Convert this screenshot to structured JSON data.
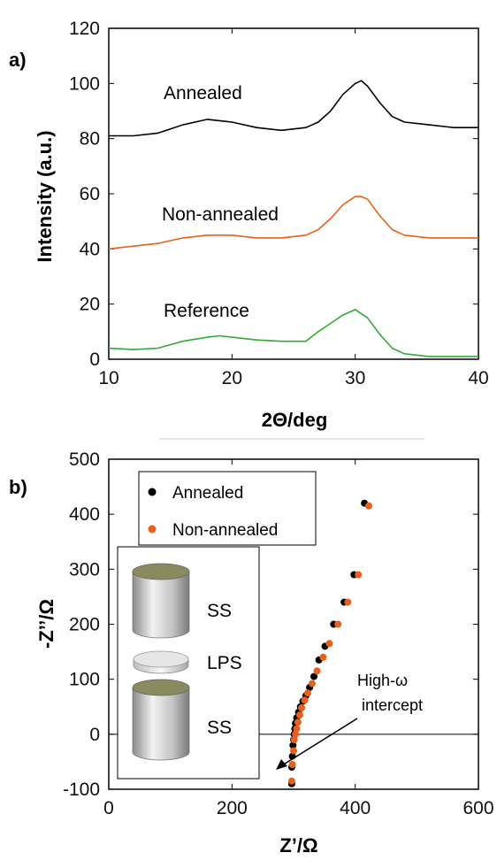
{
  "chart_data": [
    {
      "type": "line",
      "panel_label": "a)",
      "xlabel": "2Θ/deg",
      "ylabel": "Intensity (a.u.)",
      "xlim": [
        10,
        40
      ],
      "ylim": [
        0,
        120
      ],
      "xticks": [
        "10",
        "20",
        "30",
        "40"
      ],
      "yticks": [
        "0",
        "20",
        "40",
        "60",
        "80",
        "100",
        "120"
      ],
      "grid": false,
      "series": [
        {
          "name": "Annealed",
          "color": "#000000",
          "x": [
            10,
            12,
            14,
            16,
            18,
            20,
            22,
            24,
            26,
            27,
            28,
            29,
            30,
            30.5,
            31,
            32,
            33,
            34,
            36,
            38,
            40
          ],
          "y": [
            81,
            81,
            82,
            85,
            87,
            86,
            84,
            83,
            84,
            86,
            90,
            96,
            100,
            101,
            99,
            93,
            88,
            86,
            85,
            84,
            84
          ]
        },
        {
          "name": "Non-annealed",
          "color": "#e8601c",
          "x": [
            10,
            12,
            14,
            16,
            18,
            20,
            22,
            24,
            26,
            27,
            28,
            29,
            30,
            30.5,
            31,
            32,
            33,
            34,
            36,
            38,
            40
          ],
          "y": [
            40,
            41,
            42,
            44,
            45,
            45,
            44,
            44,
            45,
            47,
            51,
            56,
            59,
            59,
            58,
            52,
            47,
            45,
            44,
            44,
            44
          ]
        },
        {
          "name": "Reference",
          "color": "#33aa33",
          "x": [
            10,
            12,
            14,
            16,
            18,
            19,
            20,
            22,
            24,
            26,
            27,
            28,
            29,
            30,
            31,
            32,
            33,
            34,
            36,
            38,
            40
          ],
          "y": [
            4,
            3.5,
            4,
            6.5,
            8,
            8.5,
            8,
            7,
            6.5,
            6.5,
            10,
            13,
            16,
            18,
            15,
            9,
            4,
            2,
            1,
            1,
            1
          ]
        }
      ]
    },
    {
      "type": "scatter",
      "panel_label": "b)",
      "xlabel": "Z’/Ω",
      "ylabel": "-Z’’/Ω",
      "xlim": [
        0,
        600
      ],
      "ylim": [
        -100,
        500
      ],
      "xticks": [
        "0",
        "200",
        "400",
        "600"
      ],
      "yticks": [
        "-100",
        "0",
        "100",
        "200",
        "300",
        "400",
        "500"
      ],
      "grid": false,
      "legend_position": "top-left",
      "series": [
        {
          "name": "Annealed",
          "color": "#000000",
          "x": [
            297,
            297,
            298,
            299,
            300,
            301,
            302,
            303,
            305,
            308,
            311,
            315,
            320,
            326,
            333,
            341,
            351,
            365,
            382,
            398,
            415
          ],
          "y": [
            -90,
            -60,
            -40,
            -20,
            -10,
            0,
            10,
            20,
            30,
            40,
            50,
            60,
            70,
            85,
            105,
            135,
            160,
            200,
            240,
            290,
            420
          ]
        },
        {
          "name": "Non-annealed",
          "color": "#e8601c",
          "x": [
            297,
            298,
            300,
            301,
            303,
            305,
            307,
            310,
            313,
            318,
            323,
            330,
            338,
            348,
            358,
            372,
            388,
            405,
            422
          ],
          "y": [
            -85,
            -55,
            -30,
            -10,
            0,
            10,
            22,
            35,
            48,
            62,
            75,
            92,
            115,
            140,
            165,
            200,
            240,
            290,
            415
          ]
        }
      ],
      "annotation": [
        "High-ω",
        "intercept"
      ],
      "inset_labels": [
        "SS",
        "LPS",
        "SS"
      ]
    }
  ]
}
